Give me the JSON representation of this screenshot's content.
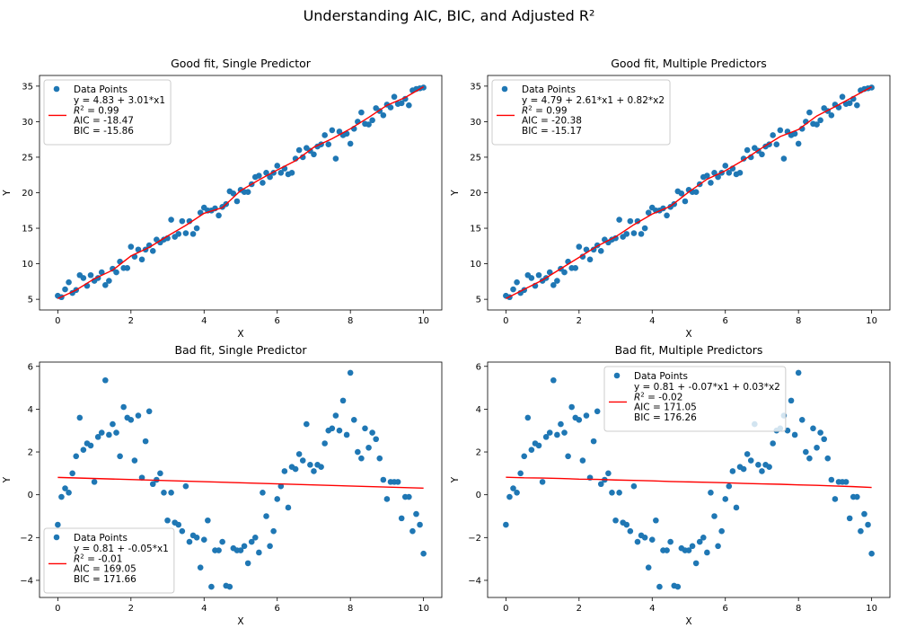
{
  "figure": {
    "title": "Understanding AIC, BIC, and Adjusted R²",
    "point_color": "#1f77b4",
    "line_color": "#ff0000"
  },
  "chart_data": [
    {
      "type": "scatter",
      "title": "Good fit, Single Predictor",
      "xlabel": "X",
      "ylabel": "Y",
      "xlim": [
        -0.5,
        10.5
      ],
      "ylim": [
        3.5,
        36.5
      ],
      "xticks": [
        0,
        2,
        4,
        6,
        8,
        10
      ],
      "yticks": [
        5,
        10,
        15,
        20,
        25,
        30,
        35
      ],
      "legend_position": "upper-left",
      "series": [
        {
          "name": "Data Points",
          "kind": "scatter",
          "x": [
            0,
            0.1,
            0.2,
            0.3,
            0.4,
            0.5,
            0.6,
            0.7,
            0.8,
            0.9,
            1.0,
            1.1,
            1.2,
            1.3,
            1.4,
            1.5,
            1.6,
            1.7,
            1.8,
            1.9,
            2.0,
            2.1,
            2.2,
            2.3,
            2.4,
            2.5,
            2.6,
            2.7,
            2.8,
            2.9,
            3.0,
            3.1,
            3.2,
            3.3,
            3.4,
            3.5,
            3.6,
            3.7,
            3.8,
            3.9,
            4.0,
            4.1,
            4.2,
            4.3,
            4.4,
            4.5,
            4.6,
            4.7,
            4.8,
            4.9,
            5.0,
            5.1,
            5.2,
            5.3,
            5.4,
            5.5,
            5.6,
            5.7,
            5.8,
            5.9,
            6.0,
            6.1,
            6.2,
            6.3,
            6.4,
            6.5,
            6.6,
            6.7,
            6.8,
            6.9,
            7.0,
            7.1,
            7.2,
            7.3,
            7.4,
            7.5,
            7.6,
            7.7,
            7.8,
            7.9,
            8.0,
            8.1,
            8.2,
            8.3,
            8.4,
            8.5,
            8.6,
            8.7,
            8.8,
            8.9,
            9.0,
            9.1,
            9.2,
            9.3,
            9.4,
            9.5,
            9.6,
            9.7,
            9.8,
            9.9,
            10.0
          ],
          "y": [
            5.5,
            5.3,
            6.4,
            7.4,
            5.9,
            6.3,
            8.4,
            8.0,
            6.9,
            8.4,
            7.6,
            8.0,
            8.8,
            7.0,
            7.6,
            9.3,
            8.8,
            10.3,
            9.4,
            9.4,
            12.4,
            11.0,
            12.0,
            10.6,
            12.0,
            12.6,
            11.8,
            13.4,
            13.0,
            13.4,
            13.6,
            16.2,
            13.8,
            14.2,
            16.0,
            14.3,
            16.0,
            14.2,
            15.0,
            17.2,
            17.9,
            17.5,
            17.5,
            17.8,
            16.8,
            18.0,
            18.4,
            20.2,
            19.9,
            18.8,
            20.4,
            20.1,
            20.1,
            21.2,
            22.2,
            22.4,
            21.4,
            22.8,
            22.2,
            22.8,
            23.8,
            22.8,
            23.4,
            22.6,
            22.8,
            24.8,
            26.0,
            25.0,
            26.3,
            25.9,
            25.4,
            26.5,
            26.8,
            28.1,
            26.8,
            28.8,
            24.8,
            28.6,
            28.1,
            28.3,
            26.9,
            29.0,
            30.0,
            31.3,
            29.7,
            29.6,
            30.2,
            31.9,
            31.5,
            30.9,
            32.4,
            32.0,
            33.5,
            32.5,
            32.6,
            33.2,
            32.3,
            34.4,
            34.6,
            34.7,
            34.8
          ]
        },
        {
          "name": "y = 4.83 + 3.01*x1",
          "kind": "line",
          "x": [
            0,
            0.5,
            1,
            1.5,
            2,
            2.5,
            3,
            3.5,
            4,
            4.5,
            5,
            5.5,
            6,
            6.5,
            7,
            7.5,
            8,
            8.5,
            9,
            9.5,
            10
          ],
          "y": [
            5.1,
            6.3,
            7.9,
            9.1,
            11.1,
            12.3,
            13.9,
            15.4,
            17.1,
            17.9,
            20.3,
            21.8,
            23.2,
            24.5,
            26.4,
            27.6,
            29.0,
            30.6,
            32.3,
            33.4,
            34.9
          ]
        }
      ],
      "stats": {
        "r2": "= 0.99",
        "aic": "AIC = -18.47",
        "bic": "BIC = -15.86"
      }
    },
    {
      "type": "scatter",
      "title": "Good fit, Multiple Predictors",
      "xlabel": "X",
      "ylabel": "Y",
      "xlim": [
        -0.5,
        10.5
      ],
      "ylim": [
        3.5,
        36.5
      ],
      "xticks": [
        0,
        2,
        4,
        6,
        8,
        10
      ],
      "yticks": [
        5,
        10,
        15,
        20,
        25,
        30,
        35
      ],
      "legend_position": "upper-left",
      "series": [
        {
          "name": "Data Points",
          "kind": "scatter",
          "x": [
            0,
            0.1,
            0.2,
            0.3,
            0.4,
            0.5,
            0.6,
            0.7,
            0.8,
            0.9,
            1.0,
            1.1,
            1.2,
            1.3,
            1.4,
            1.5,
            1.6,
            1.7,
            1.8,
            1.9,
            2.0,
            2.1,
            2.2,
            2.3,
            2.4,
            2.5,
            2.6,
            2.7,
            2.8,
            2.9,
            3.0,
            3.1,
            3.2,
            3.3,
            3.4,
            3.5,
            3.6,
            3.7,
            3.8,
            3.9,
            4.0,
            4.1,
            4.2,
            4.3,
            4.4,
            4.5,
            4.6,
            4.7,
            4.8,
            4.9,
            5.0,
            5.1,
            5.2,
            5.3,
            5.4,
            5.5,
            5.6,
            5.7,
            5.8,
            5.9,
            6.0,
            6.1,
            6.2,
            6.3,
            6.4,
            6.5,
            6.6,
            6.7,
            6.8,
            6.9,
            7.0,
            7.1,
            7.2,
            7.3,
            7.4,
            7.5,
            7.6,
            7.7,
            7.8,
            7.9,
            8.0,
            8.1,
            8.2,
            8.3,
            8.4,
            8.5,
            8.6,
            8.7,
            8.8,
            8.9,
            9.0,
            9.1,
            9.2,
            9.3,
            9.4,
            9.5,
            9.6,
            9.7,
            9.8,
            9.9,
            10.0
          ],
          "y": [
            5.5,
            5.3,
            6.4,
            7.4,
            5.9,
            6.3,
            8.4,
            8.0,
            6.9,
            8.4,
            7.6,
            8.0,
            8.8,
            7.0,
            7.6,
            9.3,
            8.8,
            10.3,
            9.4,
            9.4,
            12.4,
            11.0,
            12.0,
            10.6,
            12.0,
            12.6,
            11.8,
            13.4,
            13.0,
            13.4,
            13.6,
            16.2,
            13.8,
            14.2,
            16.0,
            14.3,
            16.0,
            14.2,
            15.0,
            17.2,
            17.9,
            17.5,
            17.5,
            17.8,
            16.8,
            18.0,
            18.4,
            20.2,
            19.9,
            18.8,
            20.4,
            20.1,
            20.1,
            21.2,
            22.2,
            22.4,
            21.4,
            22.8,
            22.2,
            22.8,
            23.8,
            22.8,
            23.4,
            22.6,
            22.8,
            24.8,
            26.0,
            25.0,
            26.3,
            25.9,
            25.4,
            26.5,
            26.8,
            28.1,
            26.8,
            28.8,
            24.8,
            28.6,
            28.1,
            28.3,
            26.9,
            29.0,
            30.0,
            31.3,
            29.7,
            29.6,
            30.2,
            31.9,
            31.5,
            30.9,
            32.4,
            32.0,
            33.5,
            32.5,
            32.6,
            33.2,
            32.3,
            34.4,
            34.6,
            34.7,
            34.8
          ]
        },
        {
          "name": "y = 4.79 + 2.61*x1 + 0.82*x2",
          "kind": "line",
          "x": [
            0,
            0.5,
            1,
            1.5,
            2,
            2.5,
            3,
            3.5,
            4,
            4.5,
            5,
            5.5,
            6,
            6.5,
            7,
            7.5,
            8,
            8.5,
            9,
            9.5,
            10
          ],
          "y": [
            5.1,
            6.4,
            7.7,
            9.3,
            10.9,
            12.5,
            13.8,
            15.5,
            17.0,
            18.1,
            20.1,
            21.9,
            23.1,
            24.6,
            26.3,
            27.9,
            28.9,
            30.8,
            32.1,
            33.5,
            34.9
          ]
        }
      ],
      "stats": {
        "r2": "= 0.99",
        "aic": "AIC = -20.38",
        "bic": "BIC = -15.17"
      }
    },
    {
      "type": "scatter",
      "title": "Bad fit, Single Predictor",
      "xlabel": "X",
      "ylabel": "Y",
      "xlim": [
        -0.5,
        10.5
      ],
      "ylim": [
        -4.8,
        6.2
      ],
      "xticks": [
        0,
        2,
        4,
        6,
        8,
        10
      ],
      "yticks": [
        -4,
        -2,
        0,
        2,
        4,
        6
      ],
      "legend_position": "lower-left",
      "series": [
        {
          "name": "Data Points",
          "kind": "scatter",
          "x": [
            0,
            0.1,
            0.2,
            0.3,
            0.4,
            0.5,
            0.6,
            0.7,
            0.8,
            0.9,
            1.0,
            1.1,
            1.2,
            1.3,
            1.4,
            1.5,
            1.6,
            1.7,
            1.8,
            1.9,
            2.0,
            2.1,
            2.2,
            2.3,
            2.4,
            2.5,
            2.6,
            2.7,
            2.8,
            2.9,
            3.0,
            3.1,
            3.2,
            3.3,
            3.4,
            3.5,
            3.6,
            3.7,
            3.8,
            3.9,
            4.0,
            4.1,
            4.2,
            4.3,
            4.4,
            4.5,
            4.6,
            4.7,
            4.8,
            4.9,
            5.0,
            5.1,
            5.2,
            5.3,
            5.4,
            5.5,
            5.6,
            5.7,
            5.8,
            5.9,
            6.0,
            6.1,
            6.2,
            6.3,
            6.4,
            6.5,
            6.6,
            6.7,
            6.8,
            6.9,
            7.0,
            7.1,
            7.2,
            7.3,
            7.4,
            7.5,
            7.6,
            7.7,
            7.8,
            7.9,
            8.0,
            8.1,
            8.2,
            8.3,
            8.4,
            8.5,
            8.6,
            8.7,
            8.8,
            8.9,
            9.0,
            9.1,
            9.2,
            9.3,
            9.4,
            9.5,
            9.6,
            9.7,
            9.8,
            9.9,
            10.0
          ],
          "y": [
            -1.4,
            -0.1,
            0.3,
            0.1,
            1.0,
            1.8,
            3.6,
            2.1,
            2.4,
            2.3,
            0.6,
            2.7,
            2.9,
            5.35,
            2.8,
            3.3,
            2.9,
            1.8,
            4.1,
            3.6,
            3.5,
            1.6,
            3.7,
            0.8,
            2.5,
            3.9,
            0.5,
            0.7,
            1.0,
            0.1,
            -1.2,
            0.1,
            -1.3,
            -1.4,
            -1.7,
            0.4,
            -2.2,
            -1.9,
            -2.0,
            -3.4,
            -2.1,
            -1.2,
            -4.3,
            -2.6,
            -2.6,
            -2.2,
            -4.25,
            -4.3,
            -2.5,
            -2.6,
            -2.6,
            -2.4,
            -3.2,
            -2.2,
            -2.0,
            -2.7,
            0.1,
            -1.0,
            -2.4,
            -1.7,
            -0.2,
            0.4,
            1.1,
            -0.6,
            1.3,
            1.2,
            1.9,
            1.6,
            3.3,
            1.4,
            1.1,
            1.4,
            1.3,
            2.4,
            3.0,
            3.1,
            3.7,
            3.0,
            4.4,
            2.8,
            5.7,
            3.5,
            2.0,
            1.7,
            3.1,
            2.2,
            2.9,
            2.6,
            1.7,
            0.7,
            -0.2,
            0.6,
            0.6,
            0.6,
            -1.1,
            -0.1,
            -0.1,
            -1.7,
            -0.9,
            -1.4,
            -2.75
          ]
        },
        {
          "name": "y = 0.81 + -0.05*x1",
          "kind": "line",
          "x": [
            0,
            10
          ],
          "y": [
            0.81,
            0.31
          ]
        }
      ],
      "stats": {
        "r2": "= -0.01",
        "aic": "AIC = 169.05",
        "bic": "BIC = 171.66"
      }
    },
    {
      "type": "scatter",
      "title": "Bad fit, Multiple Predictors",
      "xlabel": "X",
      "ylabel": "Y",
      "xlim": [
        -0.5,
        10.5
      ],
      "ylim": [
        -4.8,
        6.2
      ],
      "xticks": [
        0,
        2,
        4,
        6,
        8,
        10
      ],
      "yticks": [
        -4,
        -2,
        0,
        2,
        4,
        6
      ],
      "legend_position": "upper-center",
      "series": [
        {
          "name": "Data Points",
          "kind": "scatter",
          "x": [
            0,
            0.1,
            0.2,
            0.3,
            0.4,
            0.5,
            0.6,
            0.7,
            0.8,
            0.9,
            1.0,
            1.1,
            1.2,
            1.3,
            1.4,
            1.5,
            1.6,
            1.7,
            1.8,
            1.9,
            2.0,
            2.1,
            2.2,
            2.3,
            2.4,
            2.5,
            2.6,
            2.7,
            2.8,
            2.9,
            3.0,
            3.1,
            3.2,
            3.3,
            3.4,
            3.5,
            3.6,
            3.7,
            3.8,
            3.9,
            4.0,
            4.1,
            4.2,
            4.3,
            4.4,
            4.5,
            4.6,
            4.7,
            4.8,
            4.9,
            5.0,
            5.1,
            5.2,
            5.3,
            5.4,
            5.5,
            5.6,
            5.7,
            5.8,
            5.9,
            6.0,
            6.1,
            6.2,
            6.3,
            6.4,
            6.5,
            6.6,
            6.7,
            6.8,
            6.9,
            7.0,
            7.1,
            7.2,
            7.3,
            7.4,
            7.5,
            7.6,
            7.7,
            7.8,
            7.9,
            8.0,
            8.1,
            8.2,
            8.3,
            8.4,
            8.5,
            8.6,
            8.7,
            8.8,
            8.9,
            9.0,
            9.1,
            9.2,
            9.3,
            9.4,
            9.5,
            9.6,
            9.7,
            9.8,
            9.9,
            10.0
          ],
          "y": [
            -1.4,
            -0.1,
            0.3,
            0.1,
            1.0,
            1.8,
            3.6,
            2.1,
            2.4,
            2.3,
            0.6,
            2.7,
            2.9,
            5.35,
            2.8,
            3.3,
            2.9,
            1.8,
            4.1,
            3.6,
            3.5,
            1.6,
            3.7,
            0.8,
            2.5,
            3.9,
            0.5,
            0.7,
            1.0,
            0.1,
            -1.2,
            0.1,
            -1.3,
            -1.4,
            -1.7,
            0.4,
            -2.2,
            -1.9,
            -2.0,
            -3.4,
            -2.1,
            -1.2,
            -4.3,
            -2.6,
            -2.6,
            -2.2,
            -4.25,
            -4.3,
            -2.5,
            -2.6,
            -2.6,
            -2.4,
            -3.2,
            -2.2,
            -2.0,
            -2.7,
            0.1,
            -1.0,
            -2.4,
            -1.7,
            -0.2,
            0.4,
            1.1,
            -0.6,
            1.3,
            1.2,
            1.9,
            1.6,
            3.3,
            1.4,
            1.1,
            1.4,
            1.3,
            2.4,
            3.0,
            3.1,
            3.7,
            3.0,
            4.4,
            2.8,
            5.7,
            3.5,
            2.0,
            1.7,
            3.1,
            2.2,
            2.9,
            2.6,
            1.7,
            0.7,
            -0.2,
            0.6,
            0.6,
            0.6,
            -1.1,
            -0.1,
            -0.1,
            -1.7,
            -0.9,
            -1.4,
            -2.75
          ]
        },
        {
          "name": "y = 0.81 + -0.07*x1 + 0.03*x2",
          "kind": "line",
          "x": [
            0,
            0.5,
            1,
            1.5,
            2,
            2.5,
            3,
            3.5,
            4,
            4.5,
            5,
            5.5,
            6,
            6.5,
            7,
            7.5,
            8,
            8.5,
            9,
            9.5,
            10
          ],
          "y": [
            0.82,
            0.79,
            0.78,
            0.76,
            0.73,
            0.72,
            0.69,
            0.67,
            0.65,
            0.62,
            0.6,
            0.58,
            0.56,
            0.53,
            0.51,
            0.49,
            0.46,
            0.44,
            0.41,
            0.38,
            0.34
          ]
        }
      ],
      "stats": {
        "r2": "= -0.02",
        "aic": "AIC = 171.05",
        "bic": "BIC = 176.26"
      }
    }
  ]
}
